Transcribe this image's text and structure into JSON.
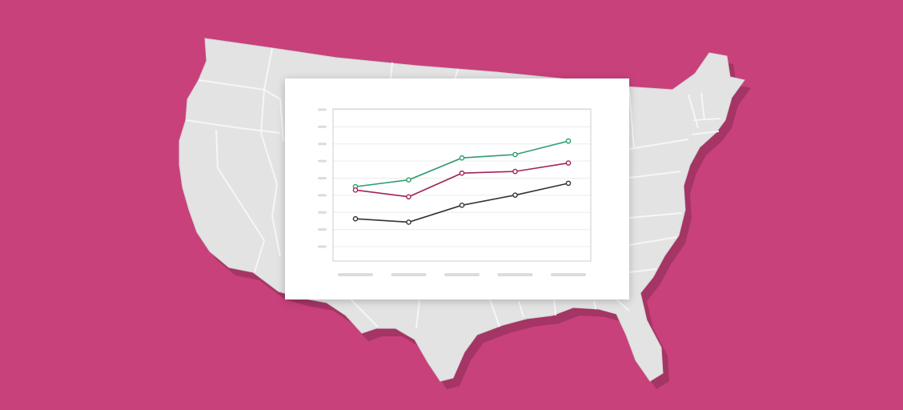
{
  "colors": {
    "background": "#c8417b",
    "map_fill": "#e3e3e3",
    "map_fill_shade": "#d4d4d4",
    "state_border": "#f6f6f6",
    "card": "#ffffff",
    "plot_border": "#cfcfcf",
    "gridline": "#ececec",
    "placeholder": "#dcdcdc"
  },
  "chart_data": {
    "type": "line",
    "title": "",
    "xlabel": "",
    "ylabel": "",
    "categories": [
      "",
      "",
      "",
      "",
      ""
    ],
    "y_ticks": [
      "",
      "",
      "",
      "",
      "",
      "",
      "",
      "",
      ""
    ],
    "ylim": [
      0,
      9
    ],
    "grid": true,
    "legend": "none",
    "series": [
      {
        "color": "#2e9e6e",
        "values": [
          4.4,
          4.8,
          6.1,
          6.3,
          7.1
        ]
      },
      {
        "color": "#a0245a",
        "values": [
          4.2,
          3.8,
          5.2,
          5.3,
          5.8
        ]
      },
      {
        "color": "#333333",
        "values": [
          2.5,
          2.3,
          3.3,
          3.9,
          4.6
        ]
      }
    ]
  }
}
